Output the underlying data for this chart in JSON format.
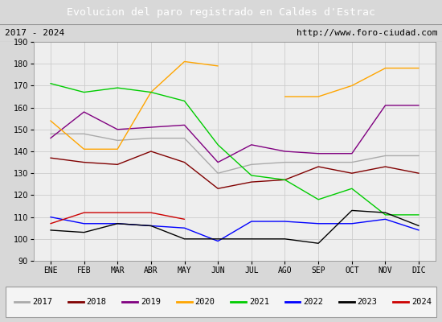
{
  "title": "Evolucion del paro registrado en Caldes d'Estrac",
  "subtitle_left": "2017 - 2024",
  "subtitle_right": "http://www.foro-ciudad.com",
  "months": [
    "ENE",
    "FEB",
    "MAR",
    "ABR",
    "MAY",
    "JUN",
    "JUL",
    "AGO",
    "SEP",
    "OCT",
    "NOV",
    "DIC"
  ],
  "series": {
    "2017": {
      "color": "#aaaaaa",
      "data": [
        148,
        148,
        145,
        146,
        146,
        130,
        134,
        135,
        135,
        135,
        138,
        138
      ]
    },
    "2018": {
      "color": "#800000",
      "data": [
        137,
        135,
        134,
        140,
        135,
        123,
        126,
        127,
        133,
        130,
        133,
        130
      ]
    },
    "2019": {
      "color": "#800080",
      "data": [
        146,
        158,
        150,
        151,
        152,
        135,
        143,
        140,
        139,
        139,
        161,
        161
      ]
    },
    "2020": {
      "color": "#ffa500",
      "data": [
        154,
        141,
        141,
        167,
        181,
        179,
        null,
        165,
        165,
        170,
        178,
        178
      ]
    },
    "2021": {
      "color": "#00cc00",
      "data": [
        171,
        167,
        169,
        167,
        163,
        143,
        129,
        127,
        118,
        123,
        111,
        111
      ]
    },
    "2022": {
      "color": "#0000ff",
      "data": [
        110,
        107,
        107,
        106,
        105,
        99,
        108,
        108,
        107,
        107,
        109,
        104
      ]
    },
    "2023": {
      "color": "#000000",
      "data": [
        104,
        103,
        107,
        106,
        100,
        100,
        100,
        100,
        98,
        113,
        112,
        106
      ]
    },
    "2024": {
      "color": "#cc0000",
      "data": [
        107,
        112,
        112,
        112,
        109,
        null,
        null,
        null,
        null,
        null,
        null,
        null
      ]
    }
  },
  "ylim": [
    90,
    190
  ],
  "yticks": [
    90,
    100,
    110,
    120,
    130,
    140,
    150,
    160,
    170,
    180,
    190
  ],
  "bg_color": "#d8d8d8",
  "plot_bg_color": "#eeeeee",
  "title_bg_color": "#4a86b8",
  "title_color": "#ffffff",
  "header_bg_color": "#d0d0d0",
  "legend_bg_color": "#f4f4f4"
}
